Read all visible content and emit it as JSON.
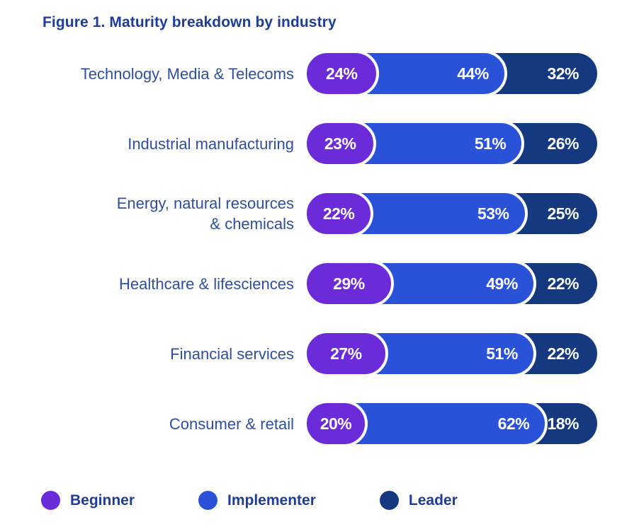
{
  "page": {
    "background": "#ffffff"
  },
  "title": "Figure 1. Maturity breakdown by industry",
  "colors": {
    "beginner": "#6C2BD9",
    "implementer": "#2A52D8",
    "leader": "#15397F",
    "title_text": "#1E3D99",
    "row_label_text": "#2E4F9E",
    "value_text": "#FFFFFF",
    "separator": "#FFFFFF"
  },
  "legend": {
    "items": [
      {
        "label": "Beginner",
        "color": "#6C2BD9"
      },
      {
        "label": "Implementer",
        "color": "#2A52D8"
      },
      {
        "label": "Leader",
        "color": "#15397F"
      }
    ]
  },
  "chart_data": {
    "type": "bar",
    "orientation": "horizontal",
    "stacked": true,
    "title": "Figure 1. Maturity breakdown by industry",
    "categories": [
      "Technology, Media & Telecoms",
      "Industrial manufacturing",
      "Energy, natural resources\n& chemicals",
      "Healthcare & lifesciences",
      "Financial services",
      "Consumer & retail"
    ],
    "series": [
      {
        "name": "Beginner",
        "values": [
          24,
          23,
          22,
          29,
          27,
          20
        ]
      },
      {
        "name": "Implementer",
        "values": [
          44,
          51,
          53,
          49,
          51,
          62
        ]
      },
      {
        "name": "Leader",
        "values": [
          32,
          26,
          25,
          22,
          22,
          18
        ]
      }
    ],
    "value_suffix": "%",
    "xlim": [
      0,
      100
    ],
    "grid": false,
    "legend_position": "bottom"
  }
}
